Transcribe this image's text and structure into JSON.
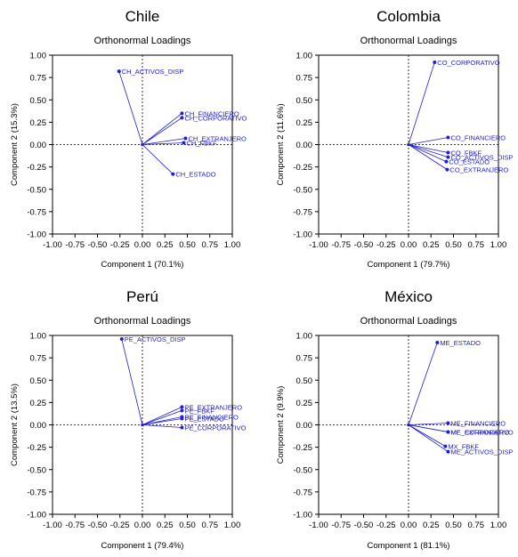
{
  "chart_data": [
    {
      "type": "scatter",
      "country": "Chile",
      "title": "Orthonormal Loadings",
      "xlabel": "Component 1 (70.1%)",
      "ylabel": "Component 2 (15.3%)",
      "xlim": [
        -1.0,
        1.0
      ],
      "ylim": [
        -1.0,
        1.0
      ],
      "ticks": [
        "-1.00",
        "-0.75",
        "-0.50",
        "-0.25",
        "0.00",
        "0.25",
        "0.50",
        "0.75",
        "1.00"
      ],
      "points": [
        {
          "label": "CH_ACTIVOS_DISP",
          "x": -0.26,
          "y": 0.82
        },
        {
          "label": "CH_FINANCIERO",
          "x": 0.44,
          "y": 0.35
        },
        {
          "label": "CH_CORPORATIVO",
          "x": 0.44,
          "y": 0.3
        },
        {
          "label": "CH_EXTRANJERO",
          "x": 0.48,
          "y": 0.07
        },
        {
          "label": "CH_FBKF",
          "x": 0.46,
          "y": 0.02
        },
        {
          "label": "CH_ESTADO",
          "x": 0.34,
          "y": -0.33
        }
      ]
    },
    {
      "type": "scatter",
      "country": "Colombia",
      "title": "Orthonormal Loadings",
      "xlabel": "Component 1 (79.7%)",
      "ylabel": "Component 2 (11.6%)",
      "xlim": [
        -1.0,
        1.0
      ],
      "ylim": [
        -1.0,
        1.0
      ],
      "ticks": [
        "-1.00",
        "-0.75",
        "-0.50",
        "-0.25",
        "0.00",
        "0.25",
        "0.50",
        "0.75",
        "1.00"
      ],
      "points": [
        {
          "label": "CO_CORPORATIVO",
          "x": 0.29,
          "y": 0.92
        },
        {
          "label": "CO_FINANCIERO",
          "x": 0.44,
          "y": 0.08
        },
        {
          "label": "CO_FBKF",
          "x": 0.44,
          "y": -0.09
        },
        {
          "label": "CO_ACTIVOS_DISP",
          "x": 0.44,
          "y": -0.14
        },
        {
          "label": "CO_ESTADO",
          "x": 0.42,
          "y": -0.19
        },
        {
          "label": "CO_EXTRANJERO",
          "x": 0.43,
          "y": -0.28
        }
      ]
    },
    {
      "type": "scatter",
      "country": "Perú",
      "title": "Orthonormal Loadings",
      "xlabel": "Component 1 (79.4%)",
      "ylabel": "Component 2 (13.5%)",
      "xlim": [
        -1.0,
        1.0
      ],
      "ylim": [
        -1.0,
        1.0
      ],
      "ticks": [
        "-1.00",
        "-0.75",
        "-0.50",
        "-0.25",
        "0.00",
        "0.25",
        "0.50",
        "0.75",
        "1.00"
      ],
      "points": [
        {
          "label": "PE_ACTIVOS_DISP",
          "x": -0.23,
          "y": 0.96
        },
        {
          "label": "PE_EXTRANJERO",
          "x": 0.44,
          "y": 0.2
        },
        {
          "label": "PE_FBKF",
          "x": 0.44,
          "y": 0.16
        },
        {
          "label": "PE_FINANCIERO",
          "x": 0.44,
          "y": 0.09
        },
        {
          "label": "PE_ESTADO",
          "x": 0.44,
          "y": 0.07
        },
        {
          "label": "PE_CORPORATIVO",
          "x": 0.44,
          "y": -0.03
        }
      ]
    },
    {
      "type": "scatter",
      "country": "México",
      "title": "Orthonormal Loadings",
      "xlabel": "Component 1 (81.1%)",
      "ylabel": "Component 2 (9.9%)",
      "xlim": [
        -1.0,
        1.0
      ],
      "ylim": [
        -1.0,
        1.0
      ],
      "ticks": [
        "-1.00",
        "-0.75",
        "-0.50",
        "-0.25",
        "0.00",
        "0.25",
        "0.50",
        "0.75",
        "1.00"
      ],
      "points": [
        {
          "label": "ME_ESTADO",
          "x": 0.32,
          "y": 0.92
        },
        {
          "label": "ME_FINANCIERO",
          "x": 0.44,
          "y": 0.02
        },
        {
          "label": "ME_CORPORATIVO",
          "x": 0.44,
          "y": -0.08
        },
        {
          "label": "ME_EXTRANJERO",
          "x": 0.44,
          "y": -0.08
        },
        {
          "label": "MX_FBKF",
          "x": 0.41,
          "y": -0.24
        },
        {
          "label": "ME_ACTIVOS_DISP",
          "x": 0.44,
          "y": -0.3
        }
      ]
    }
  ],
  "colors": {
    "accent": "#1f1fd6",
    "axis": "#000000",
    "grid": "#000000"
  }
}
